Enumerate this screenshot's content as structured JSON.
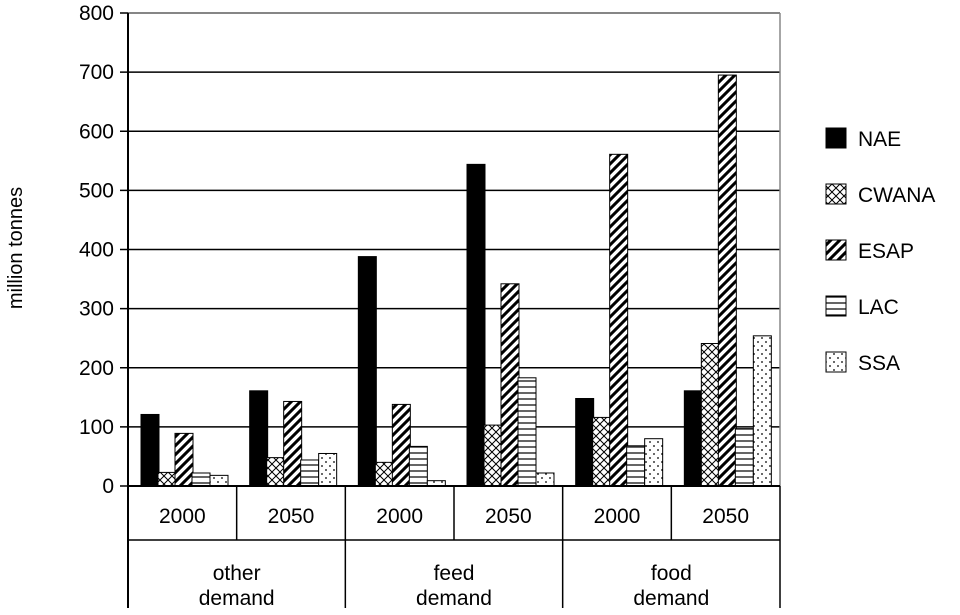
{
  "chart_data": {
    "type": "bar",
    "ylabel": "million tonnes",
    "ylim": [
      0,
      800
    ],
    "yticks": [
      0,
      100,
      200,
      300,
      400,
      500,
      600,
      700,
      800
    ],
    "grid": true,
    "legend_position": "right",
    "groups": [
      {
        "label": "other demand",
        "label_lines": [
          "other",
          "demand"
        ],
        "years": [
          "2000",
          "2050"
        ]
      },
      {
        "label": "feed demand",
        "label_lines": [
          "feed",
          "demand"
        ],
        "years": [
          "2000",
          "2050"
        ]
      },
      {
        "label": "food demand",
        "label_lines": [
          "food",
          "demand"
        ],
        "years": [
          "2000",
          "2050"
        ]
      }
    ],
    "categories": [
      "other demand 2000",
      "other demand 2050",
      "feed demand 2000",
      "feed demand 2050",
      "food demand 2000",
      "food demand 2050"
    ],
    "series": [
      {
        "name": "NAE",
        "pattern": "solid",
        "values": [
          121,
          161,
          388,
          544,
          148,
          161
        ]
      },
      {
        "name": "CWANA",
        "pattern": "crosshatch",
        "values": [
          23,
          48,
          40,
          103,
          116,
          241
        ]
      },
      {
        "name": "ESAP",
        "pattern": "diagonal",
        "values": [
          89,
          143,
          138,
          342,
          561,
          695
        ]
      },
      {
        "name": "LAC",
        "pattern": "horizontal",
        "values": [
          22,
          44,
          67,
          183,
          68,
          97
        ]
      },
      {
        "name": "SSA",
        "pattern": "dotted",
        "values": [
          18,
          55,
          9,
          22,
          80,
          254
        ]
      }
    ]
  }
}
